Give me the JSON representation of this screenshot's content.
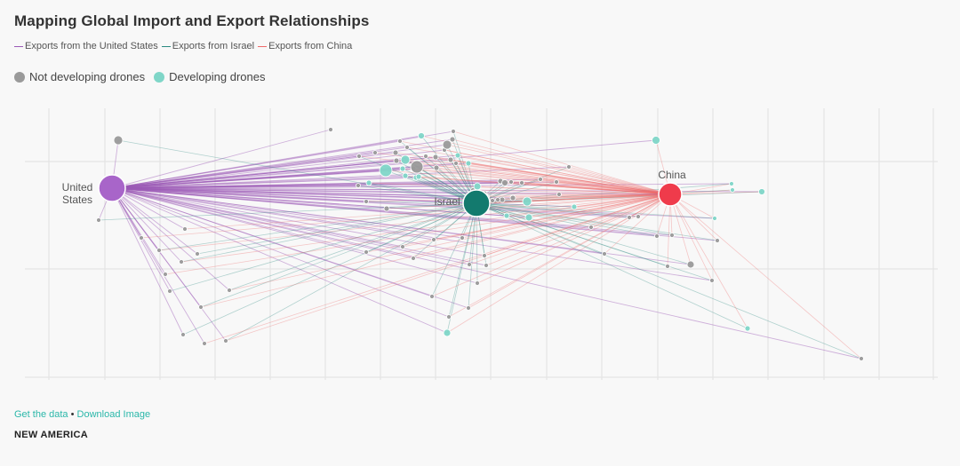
{
  "title": "Mapping Global Import and Export Relationships",
  "legend_lines": [
    {
      "label": "Exports from the United States",
      "color": "#9b59b6"
    },
    {
      "label": "Exports from Israel",
      "color": "#2a8a80"
    },
    {
      "label": "Exports from China",
      "color": "#ef6a6a"
    }
  ],
  "legend_dots": [
    {
      "label": "Not developing drones",
      "color": "#9a9a9a"
    },
    {
      "label": "Developing drones",
      "color": "#7fd6c8"
    }
  ],
  "footer": {
    "get_data": "Get the data",
    "separator": "•",
    "download": "Download Image"
  },
  "brand": "NEW AMERICA",
  "chart_data": {
    "type": "network",
    "hubs": [
      {
        "id": "US",
        "label_lines": [
          "United",
          "States"
        ],
        "color": "#a865c9",
        "exports_color": "#9b59b6"
      },
      {
        "id": "IL",
        "label_lines": [
          "Israel"
        ],
        "color": "#137a6e",
        "exports_color": "#2a8a80"
      },
      {
        "id": "CN",
        "label_lines": [
          "China"
        ],
        "color": "#ef3b4b",
        "exports_color": "#ef6a6a"
      }
    ],
    "categories": {
      "not_developing": "#9a9a9a",
      "developing": "#7fd6c8"
    }
  }
}
